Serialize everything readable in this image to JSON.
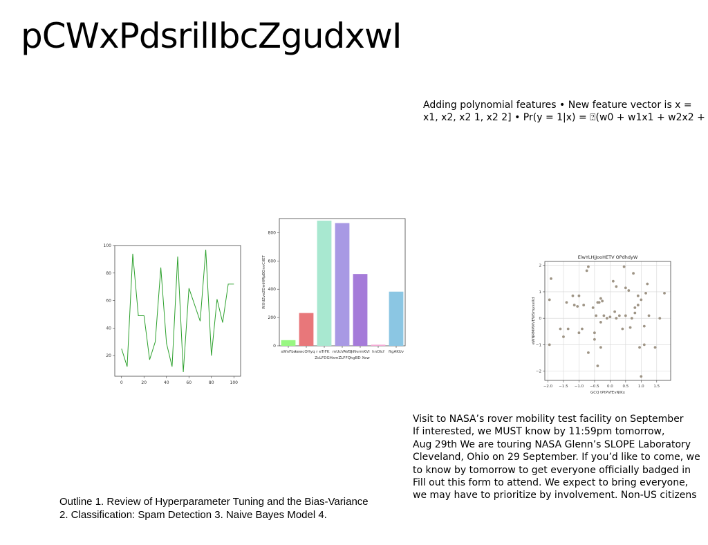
{
  "title": "pCWxPdsrilIbcZgudxwI",
  "polynomial_text": "Adding polynomial features • New feature vector is x = \nx1, x2, x2 1, x2 2] • Pr(y = 1|x) = ⍰(w0 + w1x1 + w2x2 +",
  "nasa_text": "Visit to NASA’s rover mobility test facility on September\nIf interested, we MUST know by 11:59pm tomorrow,\nAug 29th We are touring NASA Glenn’s SLOPE Laboratory\nCleveland, Ohio on 29 September. If you’d like to come, we\nto know by tomorrow to get everyone officially badged in\nFill out this form to attend. We expect to bring everyone,\nwe may have to prioritize by involvement. Non-US citizens",
  "outline_text": "Outline 1. Review of Hyperparameter Tuning and the Bias-Variance\n2. Classification: Spam Detection 3. Naive Bayes Model 4.",
  "chart_data": [
    {
      "type": "line",
      "title": "",
      "xlabel": "",
      "ylabel": "",
      "xlim": [
        -6,
        106
      ],
      "ylim": [
        5,
        100
      ],
      "xticks": [
        0,
        20,
        40,
        60,
        80,
        100
      ],
      "yticks": [
        20,
        40,
        60,
        80,
        100
      ],
      "color": "#2ca02c",
      "grid": false,
      "x": [
        0,
        5,
        10,
        15,
        20,
        25,
        30,
        35,
        40,
        45,
        50,
        55,
        60,
        65,
        70,
        75,
        80,
        85,
        90,
        95,
        100
      ],
      "y": [
        25,
        12,
        94,
        49,
        49,
        17,
        30,
        84,
        29,
        12,
        92,
        8,
        69,
        57,
        45,
        97,
        20,
        61,
        44,
        72,
        72
      ]
    },
    {
      "type": "bar",
      "title": "",
      "xlabel": "ZcLFDGHxmZLFFQkgBD Xew",
      "ylabel": "WXtIZveZOmHMpBOnvCiIET",
      "ylim": [
        0,
        900
      ],
      "yticks": [
        0,
        200,
        400,
        600,
        800
      ],
      "grid": false,
      "categories": [
        "sWnFbs",
        "kewcOHyq r",
        "eTrFK",
        "mUcVAVBj",
        "hNvrmKVl",
        "hnOlcf",
        "ftgAKUv"
      ],
      "values": [
        40,
        232,
        885,
        868,
        508,
        8,
        383
      ],
      "colors": [
        "#98f782",
        "#e8777a",
        "#a8e8d0",
        "#a899e4",
        "#a57bd9",
        "#f5a9d6",
        "#8bc6e3"
      ]
    },
    {
      "type": "scatter",
      "title": "ElwYLHjJooHETV OPdhdyW",
      "xlabel": "GCQ tPtPVfEvNlKx",
      "ylabel": "eWNRMMXVEWSmyxeXd",
      "xlim": [
        -2.1,
        1.95
      ],
      "ylim": [
        -2.35,
        2.15
      ],
      "xticks": [
        -2.0,
        -1.5,
        -1.0,
        -0.5,
        0.0,
        0.5,
        1.0,
        1.5
      ],
      "xtick_labels": [
        "−2.0",
        "−1.5",
        "−1.0",
        "−0.5",
        "0.0",
        "0.5",
        "1.0",
        "1.5"
      ],
      "yticks": [
        -2,
        -1,
        0,
        1,
        2
      ],
      "ytick_labels": [
        "−2",
        "−1",
        "0",
        "1",
        "2"
      ],
      "grid": true,
      "color": "#9e9485",
      "points": [
        [
          -1.9,
          1.5
        ],
        [
          -1.95,
          0.7
        ],
        [
          -1.95,
          -1.0
        ],
        [
          -1.6,
          -0.4
        ],
        [
          -1.5,
          -0.7
        ],
        [
          -1.4,
          0.6
        ],
        [
          -1.35,
          -0.4
        ],
        [
          -1.2,
          0.85
        ],
        [
          -1.15,
          0.5
        ],
        [
          -1.05,
          0.45
        ],
        [
          -1.0,
          0.85
        ],
        [
          -1.0,
          -0.55
        ],
        [
          -0.9,
          -0.4
        ],
        [
          -0.85,
          0.5
        ],
        [
          -0.75,
          1.8
        ],
        [
          -0.7,
          1.95
        ],
        [
          -0.7,
          -1.3
        ],
        [
          -0.55,
          0.4
        ],
        [
          -0.5,
          -0.55
        ],
        [
          -0.5,
          -0.8
        ],
        [
          -0.45,
          0.1
        ],
        [
          -0.4,
          0.6
        ],
        [
          -0.35,
          0.6
        ],
        [
          -0.3,
          0.75
        ],
        [
          -0.25,
          0.65
        ],
        [
          -0.3,
          -0.15
        ],
        [
          -0.3,
          -1.1
        ],
        [
          -0.4,
          -1.8
        ],
        [
          -0.2,
          0.1
        ],
        [
          -0.1,
          0.0
        ],
        [
          0.0,
          0.05
        ],
        [
          0.1,
          1.4
        ],
        [
          0.15,
          0.25
        ],
        [
          0.2,
          1.2
        ],
        [
          0.2,
          0.0
        ],
        [
          0.3,
          0.1
        ],
        [
          0.4,
          -0.4
        ],
        [
          0.45,
          1.95
        ],
        [
          0.5,
          1.15
        ],
        [
          0.5,
          0.1
        ],
        [
          0.6,
          1.05
        ],
        [
          0.65,
          -0.35
        ],
        [
          0.7,
          0.0
        ],
        [
          0.75,
          1.7
        ],
        [
          0.8,
          0.4
        ],
        [
          0.8,
          0.2
        ],
        [
          0.9,
          0.85
        ],
        [
          0.9,
          0.5
        ],
        [
          0.95,
          -1.1
        ],
        [
          1.0,
          -2.2
        ],
        [
          1.0,
          0.7
        ],
        [
          1.1,
          -1.0
        ],
        [
          1.1,
          -0.3
        ],
        [
          1.15,
          0.95
        ],
        [
          1.2,
          1.3
        ],
        [
          1.25,
          0.1
        ],
        [
          1.45,
          -1.1
        ],
        [
          1.6,
          0.0
        ],
        [
          1.75,
          0.95
        ]
      ]
    }
  ]
}
